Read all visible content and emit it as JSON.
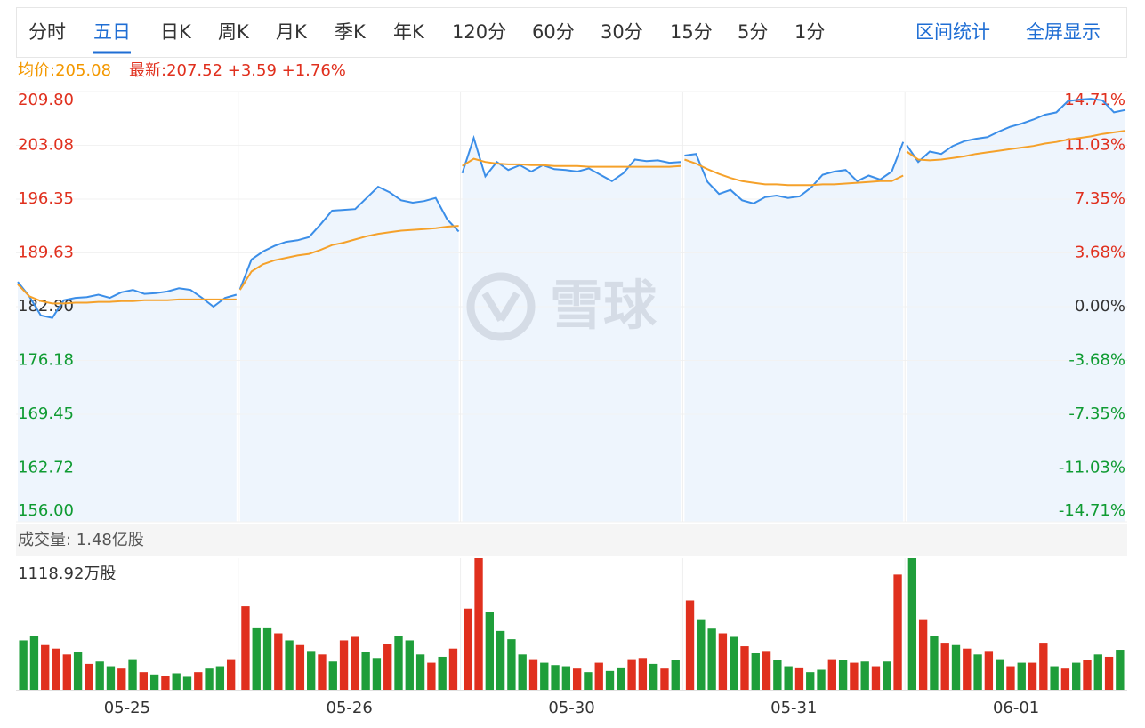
{
  "toolbar": {
    "tabs": [
      "分时",
      "五日",
      "日K",
      "周K",
      "月K",
      "季K",
      "年K",
      "120分",
      "60分",
      "30分",
      "15分",
      "5分",
      "1分"
    ],
    "active_tab": 1,
    "actions": [
      "区间统计",
      "全屏显示"
    ]
  },
  "quote": {
    "avg": "均价:205.08",
    "latest": "最新:207.52 +3.59 +1.76%"
  },
  "watermark": "雪球",
  "chart_data": [
    {
      "type": "line",
      "ylim": [
        156,
        209.8
      ],
      "yticks": [
        {
          "value": 209.8,
          "label": "209.80"
        },
        203.08,
        196.35,
        189.63,
        {
          "value": 182.9,
          "label": "182.90"
        },
        176.18,
        169.45,
        162.72,
        {
          "value": 156,
          "label": "156.00"
        }
      ],
      "y2lim": [
        -14.71,
        14.71
      ],
      "y2ticks": [
        {
          "value": 14.71,
          "label": "14.71%"
        },
        {
          "value": 11.03,
          "label": "11.03%"
        },
        {
          "value": 7.35,
          "label": "7.35%"
        },
        {
          "value": 3.68,
          "label": "3.68%"
        },
        {
          "value": 0,
          "label": "0.00%"
        },
        {
          "value": -3.68,
          "label": "-3.68%"
        },
        {
          "value": -7.35,
          "label": "-7.35%"
        },
        {
          "value": -11.03,
          "label": "-11.03%"
        },
        {
          "value": -14.71,
          "label": "-14.71%"
        }
      ],
      "up_color": "#e0301e",
      "down_color": "#0f9b32",
      "flat_color": "#333333",
      "grid": true,
      "series": [
        {
          "color": "#3b8ee8",
          "area": "#eef5fd",
          "values": [
            [
              186.0,
              184.2,
              181.8,
              181.5,
              183.7,
              184.0,
              184.1,
              184.4,
              184.0,
              184.7,
              185.0,
              184.5,
              184.6,
              184.8,
              185.2,
              185.0,
              184.0,
              182.9,
              184.0,
              184.4
            ],
            [
              185.1,
              188.8,
              189.8,
              190.5,
              191.0,
              191.2,
              191.6,
              193.2,
              194.9,
              195.0,
              195.1,
              196.5,
              197.9,
              197.2,
              196.2,
              195.9,
              196.1,
              196.5,
              193.8,
              192.3
            ],
            [
              199.6,
              204.0,
              199.2,
              201.0,
              200.0,
              200.6,
              199.8,
              200.6,
              200.1,
              200.0,
              199.8,
              200.2,
              199.4,
              198.6,
              199.6,
              201.3,
              201.1,
              201.2,
              200.9,
              201.0
            ],
            [
              201.8,
              202.0,
              198.5,
              197.0,
              197.5,
              196.2,
              195.8,
              196.6,
              196.8,
              196.5,
              196.7,
              197.8,
              199.4,
              199.8,
              200.0,
              198.6,
              199.3,
              198.8,
              199.8,
              203.5
            ],
            [
              203.1,
              201.0,
              202.3,
              202.0,
              203.0,
              203.6,
              203.9,
              204.1,
              204.8,
              205.4,
              205.8,
              206.3,
              206.9,
              207.2,
              208.6,
              208.8,
              208.9,
              208.7,
              207.2,
              207.5
            ]
          ]
        },
        {
          "color": "#f5a12a",
          "values": [
            [
              185.7,
              184.2,
              183.6,
              183.3,
              183.3,
              183.4,
              183.4,
              183.5,
              183.5,
              183.6,
              183.6,
              183.7,
              183.7,
              183.7,
              183.8,
              183.8,
              183.8,
              183.8,
              183.8,
              183.8
            ],
            [
              185.0,
              187.3,
              188.2,
              188.7,
              189.0,
              189.3,
              189.5,
              190.0,
              190.6,
              190.9,
              191.3,
              191.7,
              192.0,
              192.2,
              192.4,
              192.5,
              192.6,
              192.7,
              192.9,
              193.0
            ],
            [
              200.5,
              201.4,
              201.0,
              200.8,
              200.7,
              200.7,
              200.6,
              200.6,
              200.5,
              200.5,
              200.5,
              200.4,
              200.4,
              200.4,
              200.4,
              200.4,
              200.4,
              200.4,
              200.4,
              200.5
            ],
            [
              201.3,
              200.8,
              200.1,
              199.5,
              199.0,
              198.6,
              198.4,
              198.2,
              198.2,
              198.1,
              198.1,
              198.1,
              198.2,
              198.2,
              198.3,
              198.4,
              198.5,
              198.6,
              198.6,
              199.3
            ],
            [
              202.3,
              201.3,
              201.2,
              201.3,
              201.5,
              201.7,
              202.0,
              202.2,
              202.4,
              202.6,
              202.8,
              203.0,
              203.3,
              203.5,
              203.8,
              204.0,
              204.2,
              204.5,
              204.7,
              204.9
            ]
          ]
        }
      ]
    },
    {
      "type": "bar",
      "title": "成交量: 1.48亿股",
      "categories": [
        "05-25",
        "05-26",
        "05-30",
        "05-31",
        "06-01"
      ],
      "ylim": [
        0,
        1118.92
      ],
      "yticks": [
        {
          "value": 1118.92,
          "label": "1118.92万股"
        }
      ],
      "up_color": "#e0301e",
      "down_color": "#1f9e3a",
      "values": [
        [
          420,
          460,
          380,
          350,
          300,
          320,
          220,
          240,
          200,
          180,
          260,
          150,
          130,
          120,
          140,
          110,
          150,
          180,
          200,
          260
        ],
        [
          710,
          530,
          530,
          480,
          420,
          380,
          330,
          300,
          240,
          420,
          450,
          320,
          270,
          390,
          460,
          420,
          300,
          230,
          280,
          350
        ],
        [
          690,
          1118.92,
          660,
          500,
          430,
          300,
          260,
          230,
          210,
          200,
          180,
          150,
          230,
          160,
          190,
          260,
          270,
          220,
          180,
          250
        ],
        [
          760,
          600,
          520,
          480,
          450,
          370,
          310,
          330,
          250,
          200,
          190,
          150,
          170,
          260,
          250,
          230,
          240,
          200,
          240,
          980
        ],
        [
          1118.92,
          600,
          460,
          400,
          380,
          350,
          300,
          330,
          260,
          200,
          230,
          230,
          400,
          200,
          180,
          230,
          250,
          300,
          280,
          340
        ]
      ],
      "up": [
        [
          0,
          0,
          1,
          1,
          1,
          0,
          1,
          0,
          0,
          1,
          0,
          1,
          0,
          1,
          0,
          0,
          1,
          0,
          0,
          1
        ],
        [
          1,
          0,
          0,
          1,
          0,
          1,
          0,
          1,
          0,
          1,
          1,
          0,
          0,
          1,
          0,
          0,
          0,
          1,
          0,
          1
        ],
        [
          1,
          1,
          0,
          0,
          0,
          0,
          1,
          0,
          0,
          0,
          1,
          0,
          1,
          0,
          0,
          1,
          1,
          0,
          1,
          0
        ],
        [
          1,
          0,
          0,
          1,
          0,
          1,
          0,
          1,
          0,
          0,
          1,
          0,
          0,
          1,
          0,
          1,
          0,
          1,
          0,
          1
        ],
        [
          0,
          1,
          0,
          1,
          0,
          1,
          0,
          1,
          0,
          1,
          0,
          1,
          1,
          0,
          1,
          0,
          1,
          0,
          1,
          0
        ]
      ]
    }
  ]
}
